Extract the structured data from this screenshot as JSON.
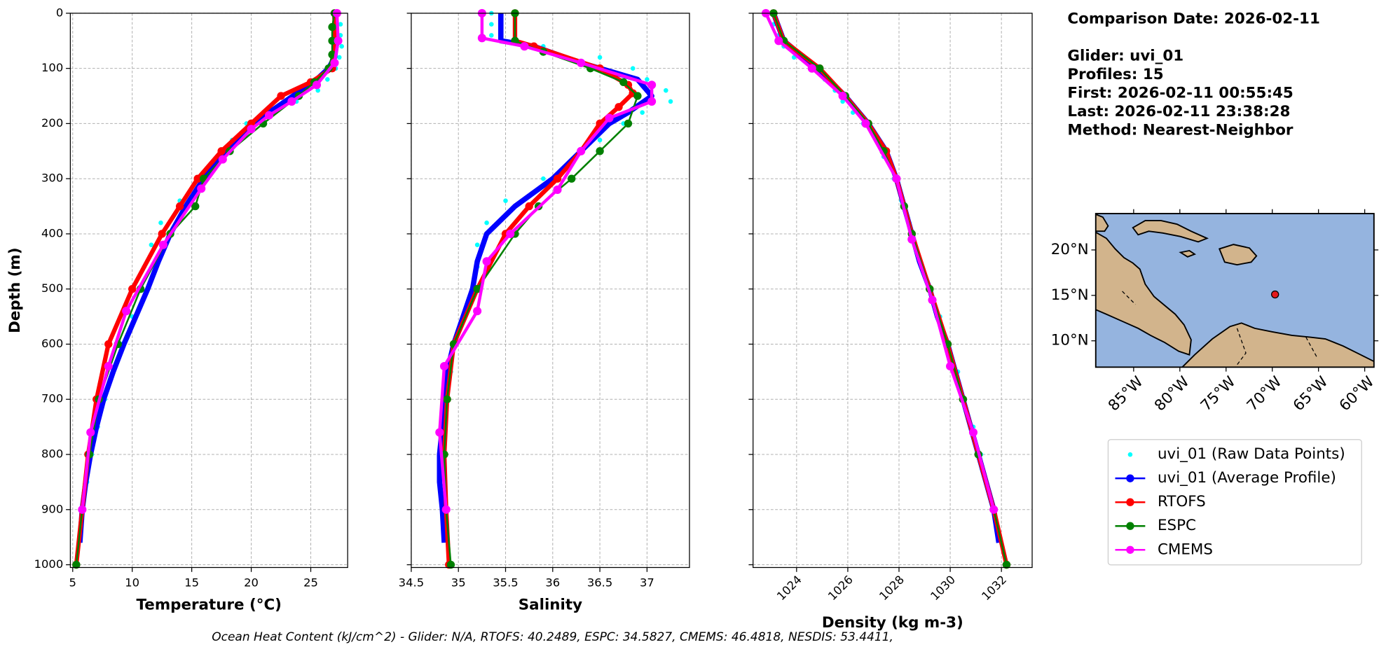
{
  "chart_data": [
    {
      "type": "line",
      "xlabel": "Temperature (°C)",
      "ylabel": "Depth (m)",
      "xlim": [
        4.8,
        28.1
      ],
      "ylim": [
        0,
        1005
      ],
      "invert_y": true,
      "grid": true,
      "show_ytick_labels": true,
      "xticks": [
        5,
        10,
        15,
        20,
        25
      ],
      "yticks": [
        0,
        100,
        200,
        300,
        400,
        500,
        600,
        700,
        800,
        900,
        1000
      ],
      "series": [
        {
          "name": "uvi_01 (Raw Data Points)",
          "color": "#00ffff",
          "marker_only": true,
          "x": [
            26.9,
            27.5,
            27.5,
            27.6,
            27.4,
            27.1,
            26.4,
            25.6,
            23.8,
            21.2,
            19.6,
            18.4,
            17.2,
            15.5,
            14.0,
            12.4,
            11.6,
            11.0,
            10.8,
            10.0,
            9.1,
            8.4,
            7.7,
            7.1,
            6.6,
            6.2,
            5.8,
            5.6
          ],
          "y": [
            0,
            20,
            40,
            60,
            80,
            100,
            120,
            140,
            160,
            180,
            200,
            230,
            260,
            300,
            340,
            380,
            420,
            460,
            500,
            550,
            600,
            650,
            700,
            750,
            800,
            850,
            900,
            950
          ]
        },
        {
          "name": "uvi_01 (Average Profile)",
          "color": "#0000ff",
          "x": [
            27.0,
            27.2,
            27.0,
            26.5,
            25.5,
            23.5,
            21.5,
            20.3,
            17.8,
            16.0,
            14.5,
            13.2,
            12.2,
            11.3,
            10.3,
            9.3,
            8.4,
            7.6,
            7.0,
            6.5,
            6.1,
            5.8,
            5.6
          ],
          "y": [
            0,
            50,
            80,
            100,
            120,
            150,
            180,
            200,
            250,
            300,
            350,
            400,
            450,
            500,
            550,
            600,
            650,
            700,
            750,
            800,
            850,
            900,
            960
          ]
        },
        {
          "name": "RTOFS",
          "color": "#ff0000",
          "markers": true,
          "x": [
            27.0,
            27.0,
            26.8,
            25.0,
            22.5,
            20.0,
            17.5,
            15.5,
            14.0,
            12.5,
            10.0,
            8.0,
            7.0,
            6.3,
            5.8,
            5.3
          ],
          "y": [
            0,
            50,
            100,
            125,
            150,
            200,
            250,
            300,
            350,
            400,
            500,
            600,
            700,
            800,
            900,
            1000
          ]
        },
        {
          "name": "ESPC",
          "color": "#008000",
          "markers": true,
          "x": [
            27.0,
            26.8,
            26.8,
            26.8,
            26.5,
            25.3,
            24.0,
            21.0,
            18.2,
            16.0,
            15.3,
            13.2,
            10.7,
            8.8,
            7.2,
            6.4,
            5.8,
            5.3
          ],
          "y": [
            0,
            25,
            50,
            75,
            100,
            125,
            150,
            200,
            250,
            300,
            350,
            400,
            500,
            600,
            700,
            800,
            900,
            1000
          ]
        },
        {
          "name": "CMEMS",
          "color": "#ff00ff",
          "markers": true,
          "x": [
            27.2,
            27.3,
            27.0,
            25.5,
            23.4,
            21.5,
            20.0,
            17.6,
            15.8,
            12.6,
            9.5,
            8.0,
            6.5,
            5.8
          ],
          "y": [
            0,
            50,
            90,
            130,
            160,
            185,
            210,
            265,
            318,
            420,
            540,
            640,
            760,
            900
          ]
        }
      ]
    },
    {
      "type": "line",
      "xlabel": "Salinity",
      "xlim": [
        34.5,
        37.45
      ],
      "ylim": [
        0,
        1005
      ],
      "invert_y": true,
      "grid": true,
      "show_ytick_labels": false,
      "xticks": [
        34.5,
        35.0,
        35.5,
        36.0,
        36.5,
        37.0
      ],
      "yticks": [
        0,
        100,
        200,
        300,
        400,
        500,
        600,
        700,
        800,
        900,
        1000
      ],
      "series": [
        {
          "name": "uvi_01 (Raw Data Points)",
          "color": "#00ffff",
          "marker_only": true,
          "x": [
            35.35,
            35.35,
            35.35,
            35.9,
            36.5,
            36.85,
            37.0,
            37.2,
            37.25,
            36.95,
            36.75,
            36.5,
            36.25,
            35.9,
            35.5,
            35.3,
            35.2,
            35.2,
            35.18,
            35.05,
            34.98,
            34.92,
            34.85,
            34.85,
            34.8,
            34.8,
            34.83,
            34.87
          ],
          "y": [
            0,
            20,
            40,
            60,
            80,
            100,
            120,
            140,
            160,
            180,
            200,
            230,
            260,
            300,
            340,
            380,
            420,
            460,
            500,
            550,
            600,
            650,
            700,
            750,
            800,
            850,
            900,
            950
          ]
        },
        {
          "name": "uvi_01 (Average Profile)",
          "color": "#0000ff",
          "x": [
            35.45,
            35.45,
            35.8,
            36.3,
            36.9,
            37.05,
            36.8,
            36.6,
            36.3,
            36.0,
            35.6,
            35.3,
            35.2,
            35.15,
            35.05,
            34.95,
            34.88,
            34.85,
            34.83,
            34.8,
            34.8,
            34.83,
            34.85
          ],
          "y": [
            0,
            50,
            60,
            90,
            120,
            150,
            180,
            200,
            250,
            300,
            350,
            400,
            450,
            500,
            550,
            600,
            650,
            700,
            750,
            800,
            850,
            900,
            960
          ]
        },
        {
          "name": "RTOFS",
          "color": "#ff0000",
          "markers": true,
          "x": [
            35.6,
            35.6,
            35.8,
            36.5,
            36.8,
            36.85,
            36.7,
            36.5,
            36.3,
            36.05,
            35.75,
            35.5,
            35.2,
            34.95,
            34.88,
            34.85,
            34.87,
            34.9
          ],
          "y": [
            0,
            50,
            60,
            100,
            130,
            145,
            170,
            200,
            250,
            300,
            350,
            400,
            500,
            600,
            700,
            800,
            900,
            1000
          ]
        },
        {
          "name": "ESPC",
          "color": "#008000",
          "markers": true,
          "x": [
            35.6,
            35.6,
            35.9,
            36.4,
            36.75,
            36.9,
            36.8,
            36.5,
            36.2,
            35.85,
            35.6,
            35.2,
            34.95,
            34.88,
            34.85,
            34.87,
            34.92
          ],
          "y": [
            0,
            50,
            70,
            100,
            125,
            150,
            200,
            250,
            300,
            350,
            400,
            500,
            600,
            700,
            800,
            900,
            1000
          ]
        },
        {
          "name": "CMEMS",
          "color": "#ff00ff",
          "markers": true,
          "x": [
            35.25,
            35.25,
            35.7,
            36.3,
            37.05,
            37.05,
            36.6,
            36.3,
            36.05,
            35.55,
            35.3,
            35.2,
            34.85,
            34.8,
            34.87
          ],
          "y": [
            0,
            45,
            60,
            90,
            130,
            160,
            190,
            250,
            320,
            400,
            450,
            540,
            640,
            760,
            900
          ]
        }
      ]
    },
    {
      "type": "line",
      "xlabel": "Density (kg m-3)",
      "xtick_rotation": 45,
      "xlim": [
        1022.3,
        1033.2
      ],
      "ylim": [
        0,
        1005
      ],
      "invert_y": true,
      "grid": true,
      "show_ytick_labels": false,
      "xticks": [
        1024,
        1026,
        1028,
        1030,
        1032
      ],
      "yticks": [
        0,
        100,
        200,
        300,
        400,
        500,
        600,
        700,
        800,
        900,
        1000
      ],
      "series": [
        {
          "name": "uvi_01 (Raw Data Points)",
          "color": "#00ffff",
          "marker_only": true,
          "x": [
            1023.0,
            1023.1,
            1023.3,
            1023.5,
            1023.9,
            1024.6,
            1025.1,
            1025.5,
            1025.8,
            1026.2,
            1026.6,
            1027.1,
            1027.4,
            1027.8,
            1028.1,
            1028.4,
            1028.6,
            1028.9,
            1029.2,
            1029.6,
            1029.9,
            1030.3,
            1030.5,
            1030.9,
            1031.2,
            1031.4,
            1031.7,
            1031.9
          ],
          "y": [
            0,
            20,
            40,
            60,
            80,
            100,
            120,
            140,
            160,
            180,
            200,
            230,
            260,
            300,
            340,
            380,
            420,
            460,
            500,
            550,
            600,
            650,
            700,
            750,
            800,
            850,
            900,
            950
          ]
        },
        {
          "name": "uvi_01 (Average Profile)",
          "color": "#0000ff",
          "x": [
            1023.1,
            1023.5,
            1024.8,
            1025.9,
            1026.8,
            1027.5,
            1027.9,
            1028.2,
            1028.5,
            1028.8,
            1029.2,
            1029.5,
            1029.9,
            1030.2,
            1030.5,
            1030.8,
            1031.1,
            1031.4,
            1031.7,
            1031.9
          ],
          "y": [
            0,
            50,
            100,
            150,
            200,
            250,
            300,
            350,
            400,
            450,
            500,
            550,
            600,
            650,
            700,
            750,
            800,
            850,
            900,
            960
          ]
        },
        {
          "name": "RTOFS",
          "color": "#ff0000",
          "markers": true,
          "x": [
            1023.1,
            1023.5,
            1024.9,
            1025.9,
            1026.8,
            1027.5,
            1027.9,
            1028.5,
            1029.2,
            1029.9,
            1030.5,
            1031.1,
            1031.7,
            1032.2
          ],
          "y": [
            0,
            50,
            100,
            150,
            200,
            250,
            300,
            400,
            500,
            600,
            700,
            800,
            900,
            1000
          ]
        },
        {
          "name": "ESPC",
          "color": "#008000",
          "markers": true,
          "x": [
            1023.1,
            1023.5,
            1024.9,
            1025.9,
            1026.8,
            1027.4,
            1027.9,
            1028.2,
            1028.5,
            1029.2,
            1029.9,
            1030.5,
            1031.1,
            1031.7,
            1032.2
          ],
          "y": [
            0,
            50,
            100,
            150,
            200,
            250,
            300,
            350,
            400,
            500,
            600,
            700,
            800,
            900,
            1000
          ]
        },
        {
          "name": "CMEMS",
          "color": "#ff00ff",
          "markers": true,
          "x": [
            1022.8,
            1023.3,
            1024.6,
            1025.8,
            1026.7,
            1027.9,
            1028.5,
            1029.3,
            1030.0,
            1030.9,
            1031.7
          ],
          "y": [
            0,
            50,
            100,
            150,
            200,
            300,
            410,
            520,
            640,
            760,
            900
          ]
        }
      ]
    },
    {
      "type": "map",
      "ocean_color": "#95b4df",
      "land_color": "#d2b48c",
      "xlim": [
        -89.1,
        -59.0
      ],
      "ylim": [
        7.1,
        24.0
      ],
      "xticks": [
        {
          "value": -85,
          "label": "85°W"
        },
        {
          "value": -80,
          "label": "80°W"
        },
        {
          "value": -75,
          "label": "75°W"
        },
        {
          "value": -70,
          "label": "70°W"
        },
        {
          "value": -65,
          "label": "65°W"
        },
        {
          "value": -60,
          "label": "60°W"
        }
      ],
      "yticks": [
        {
          "value": 10,
          "label": "10°N"
        },
        {
          "value": 15,
          "label": "15°N"
        },
        {
          "value": 20,
          "label": "20°N"
        }
      ],
      "point": {
        "x": -69.7,
        "y": 15.1,
        "color": "#e41a1c"
      }
    }
  ],
  "info": {
    "date": "Comparison Date: 2026-02-11",
    "glider": "Glider: uvi_01",
    "profiles": "Profiles: 15",
    "first": "First: 2026-02-11 00:55:45",
    "last": "Last: 2026-02-11 23:38:28",
    "method": "Method: Nearest-Neighbor"
  },
  "footer": "Ocean Heat Content (kJ/cm^2) - Glider: N/A,  RTOFS: 40.2489,  ESPC: 34.5827,  CMEMS: 46.4818,  NESDIS: 53.4411,"
}
